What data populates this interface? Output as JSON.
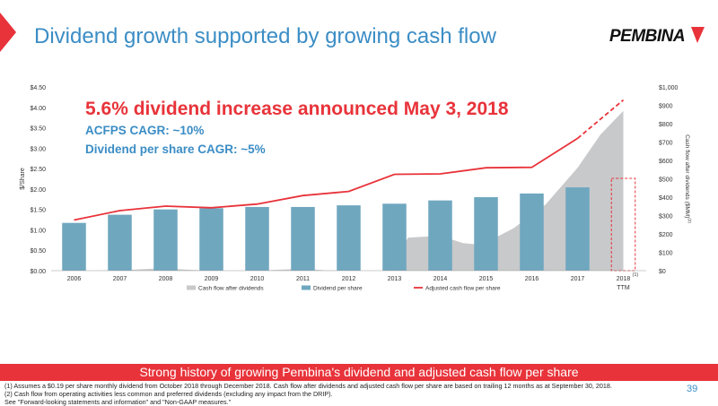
{
  "slide": {
    "title": "Dividend growth supported by growing cash flow",
    "logo_text": "PEMBINA",
    "banner": "Strong history of growing Pembina's dividend and adjusted cash flow per share",
    "footnotes": [
      "(1) Assumes a $0.19 per share monthly dividend from October 2018 through December 2018. Cash flow after dividends and adjusted cash flow per share are based on trailing 12 months as at September 30, 2018.",
      "(2) Cash flow from operating activities less common and preferred dividends (excluding any impact from the DRIP).",
      "See \"Forward-looking statements and information\" and \"Non-GAAP measures.\""
    ],
    "page_number": "39",
    "colors": {
      "accent_red": "#e8333a",
      "title_blue": "#3b8dc5",
      "bar_blue": "#6fa7bf",
      "area_grey": "#c8c9cb"
    }
  },
  "annotations": {
    "headline": "5.6% dividend increase announced May 3, 2018",
    "line2": "ACFPS CAGR: ~10%",
    "line3": "Dividend per share CAGR: ~5%"
  },
  "chart_data": {
    "type": "bar",
    "categories": [
      "2006",
      "2007",
      "2008",
      "2009",
      "2010",
      "2011",
      "2012",
      "2013",
      "2014",
      "2015",
      "2016",
      "2017",
      "2018"
    ],
    "last_category_note": "(1)",
    "last_category_sublabel": "TTM",
    "ylabel_left": "$/Share",
    "ylabel_right": "Cash flow after dividends ($MM)",
    "ylabel_right_superscript": "(2)",
    "ylim_left": [
      0,
      4.5
    ],
    "ylim_right": [
      0,
      1000
    ],
    "left_ticks": [
      "$0.00",
      "$0.50",
      "$1.00",
      "$1.50",
      "$2.00",
      "$2.50",
      "$3.00",
      "$3.50",
      "$4.00",
      "$4.50"
    ],
    "right_ticks": [
      "$0",
      "$100",
      "$200",
      "$300",
      "$400",
      "$500",
      "$600",
      "$700",
      "$800",
      "$900",
      "$1,000"
    ],
    "legend_position": "bottom",
    "series": [
      {
        "name": "Cash flow after dividends",
        "kind": "area",
        "axis": "right",
        "color": "#c8c9cb",
        "points": [
          [
            2006.3,
            0
          ],
          [
            2007,
            2
          ],
          [
            2008,
            14
          ],
          [
            2008.4,
            6
          ],
          [
            2009,
            0
          ],
          [
            2010,
            0
          ],
          [
            2011,
            10
          ],
          [
            2011.5,
            2
          ],
          [
            2012,
            0
          ],
          [
            2012.8,
            0
          ],
          [
            2013.3,
            180
          ],
          [
            2014,
            190
          ],
          [
            2014.5,
            150
          ],
          [
            2014.9,
            140
          ],
          [
            2015.6,
            230
          ],
          [
            2016.3,
            360
          ],
          [
            2017,
            560
          ],
          [
            2017.5,
            740
          ],
          [
            2018,
            870
          ]
        ]
      },
      {
        "name": "Dividend per share",
        "kind": "bar",
        "axis": "left",
        "color": "#6fa7bf",
        "values": [
          1.17,
          1.37,
          1.5,
          1.53,
          1.56,
          1.56,
          1.6,
          1.64,
          1.72,
          1.8,
          1.89,
          2.04,
          null
        ]
      },
      {
        "name": "Adjusted cash flow per share",
        "kind": "line",
        "axis": "left",
        "color": "#e8333a",
        "values": [
          1.24,
          1.47,
          1.58,
          1.54,
          1.63,
          1.84,
          1.94,
          2.36,
          2.37,
          2.52,
          2.53,
          3.24,
          4.18
        ],
        "dashed_from_index": 11
      }
    ],
    "ttm_placeholder_bar": {
      "category": "2018",
      "value": 2.26,
      "style": "dashed-red-outline"
    }
  }
}
